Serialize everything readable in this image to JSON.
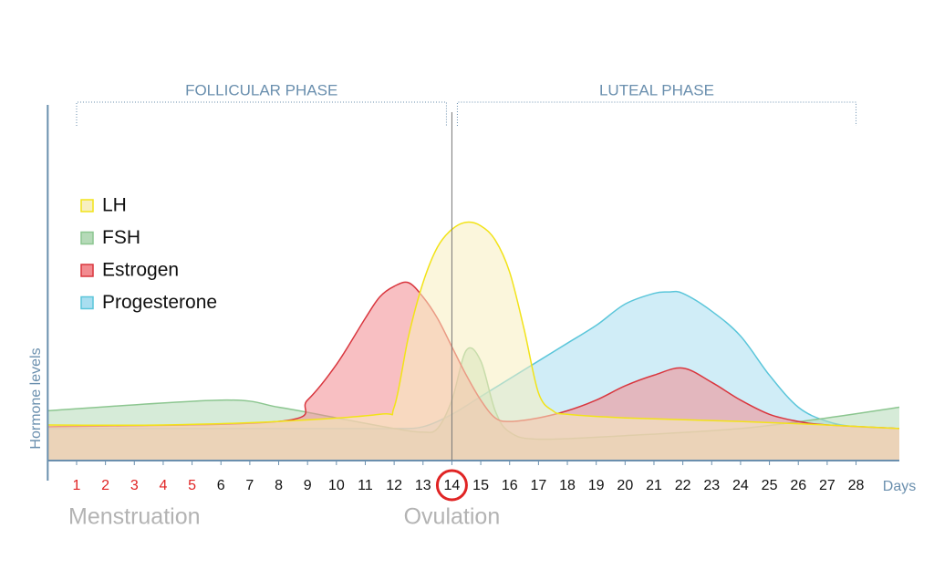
{
  "chart_data": {
    "type": "area",
    "y_label": "Hormone levels",
    "x_label": "Days",
    "xlim": [
      0,
      29.5
    ],
    "ylim": [
      0,
      100
    ],
    "xticks": [
      1,
      2,
      3,
      4,
      5,
      6,
      7,
      8,
      9,
      10,
      11,
      12,
      13,
      14,
      15,
      16,
      17,
      18,
      19,
      20,
      21,
      22,
      23,
      24,
      25,
      26,
      27,
      28
    ],
    "menstruation": {
      "label": "Menstruation",
      "days": [
        1,
        5
      ],
      "color": "#e02424"
    },
    "ovulation": {
      "label": "Ovulation",
      "day": 14,
      "color": "#e02424"
    },
    "phases": [
      {
        "label": "FOLLICULAR PHASE",
        "range": [
          1,
          14
        ]
      },
      {
        "label": "LUTEAL PHASE",
        "range": [
          14,
          28
        ]
      }
    ],
    "series": [
      {
        "name": "Progesterone",
        "color": "#5bc6da",
        "fill": "#a9def0",
        "x": [
          0,
          10,
          12,
          13,
          14,
          15,
          16,
          17,
          18,
          19,
          20,
          21,
          21.5,
          22,
          23,
          24,
          25,
          26,
          27,
          28,
          29.5
        ],
        "values": [
          9,
          9,
          9,
          9.5,
          13,
          18,
          23,
          28,
          33,
          38,
          44,
          47,
          47.4,
          47,
          42,
          35,
          24,
          15,
          11,
          9.5,
          9
        ]
      },
      {
        "name": "FSH",
        "color": "#8cc690",
        "fill": "#b5dab8",
        "x": [
          0,
          6,
          8,
          10,
          12,
          13,
          13.5,
          14,
          14.5,
          15,
          15.5,
          16,
          17,
          20,
          24,
          27,
          29.5
        ],
        "values": [
          14,
          17,
          15,
          12,
          9,
          8,
          9,
          17,
          31,
          28,
          14,
          8,
          6,
          7,
          9,
          12,
          15
        ]
      },
      {
        "name": "Estrogen",
        "color": "#d9363e",
        "fill": "#f28b90",
        "x": [
          0,
          8,
          9,
          10,
          11,
          11.5,
          12,
          12.5,
          13,
          13.5,
          14,
          14.5,
          15,
          15.5,
          16,
          17,
          18,
          19,
          20,
          21,
          22,
          23,
          24,
          25,
          26,
          27,
          29.5
        ],
        "values": [
          9.5,
          11,
          17,
          27,
          40,
          46,
          49,
          50,
          46,
          40,
          32,
          24,
          17,
          12,
          11,
          12,
          14,
          17,
          21,
          24,
          26,
          22,
          17,
          13,
          11,
          10,
          9
        ]
      },
      {
        "name": "LH",
        "color": "#f2e318",
        "fill": "#f7efc0",
        "x": [
          0,
          4,
          8,
          11.5,
          12,
          12.5,
          13,
          13.5,
          14,
          14.5,
          15,
          15.5,
          16,
          16.5,
          17,
          17.5,
          18,
          20,
          24,
          27,
          29.5
        ],
        "values": [
          10,
          10,
          11,
          13,
          15,
          35,
          50,
          60,
          65,
          67,
          66,
          62,
          53,
          37,
          19,
          14,
          13,
          12,
          11,
          10,
          9
        ]
      }
    ],
    "legend_order": [
      3,
      1,
      2,
      0
    ]
  }
}
